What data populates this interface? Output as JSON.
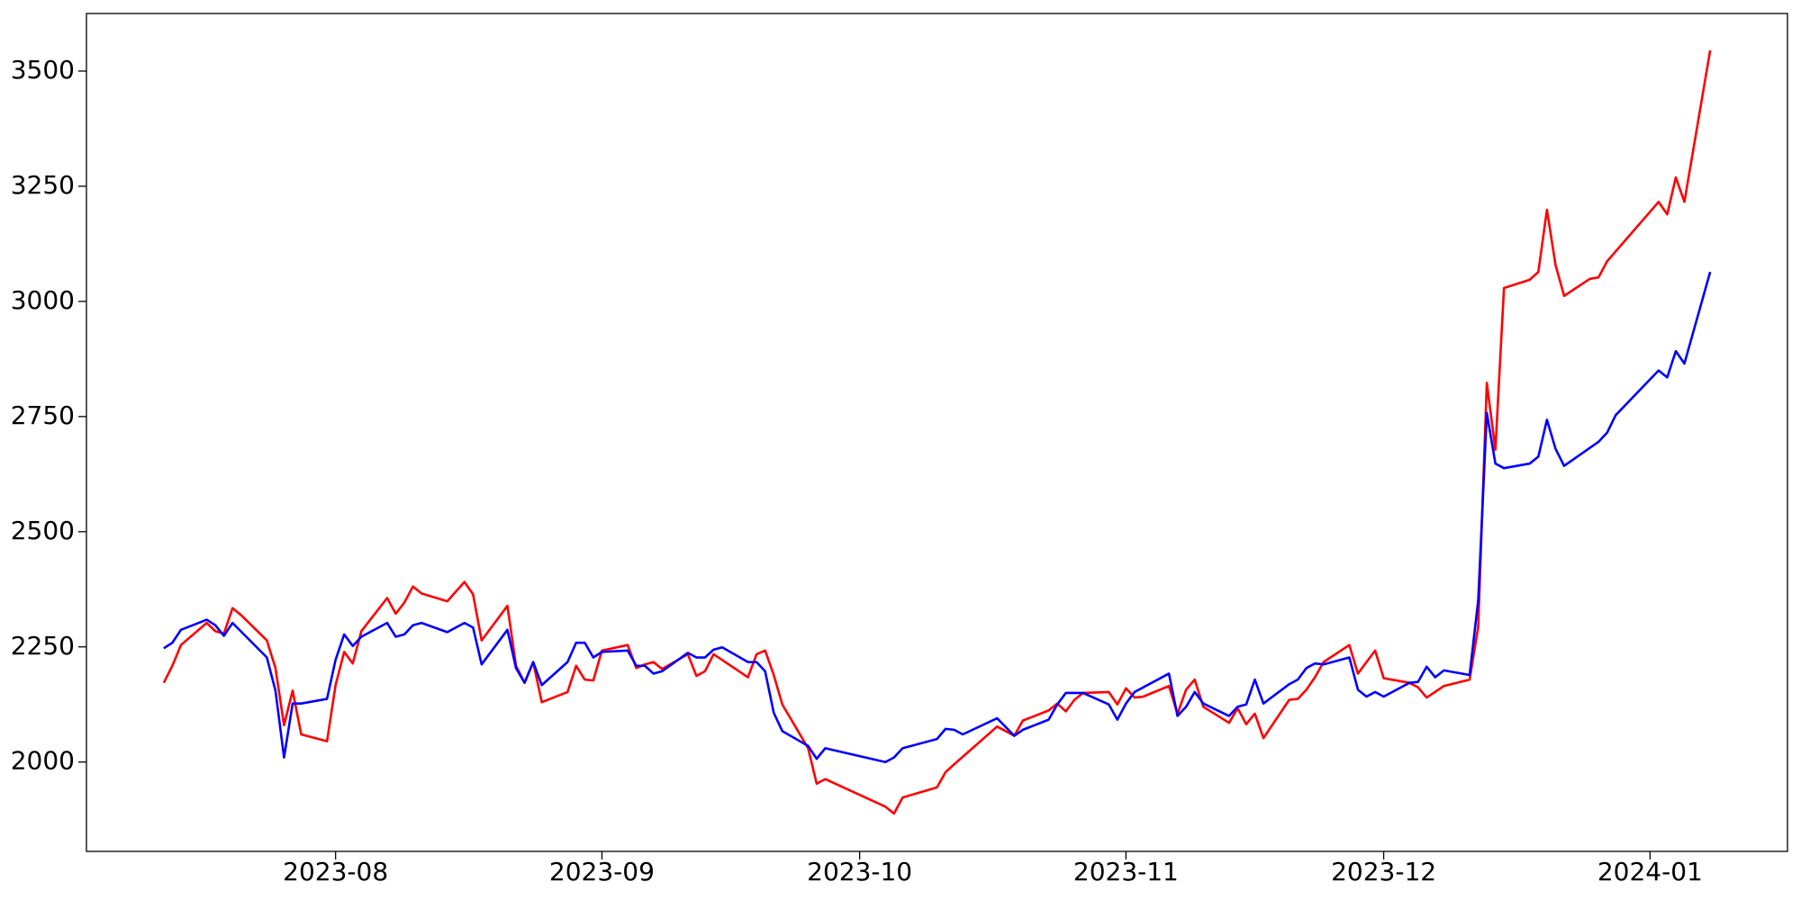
{
  "chart_data": {
    "type": "line",
    "xlim": [
      -29,
      169
    ],
    "xticks": [
      {
        "value": 0,
        "label": "2023-08"
      },
      {
        "value": 31,
        "label": "2023-09"
      },
      {
        "value": 61,
        "label": "2023-10"
      },
      {
        "value": 92,
        "label": "2023-11"
      },
      {
        "value": 122,
        "label": "2023-12"
      },
      {
        "value": 153,
        "label": "2024-01"
      }
    ],
    "ylim": [
      1806,
      3625
    ],
    "yticks": [
      2000,
      2250,
      2500,
      2750,
      3000,
      3250,
      3500
    ],
    "grid": false,
    "series": [
      {
        "color": "#ff0000",
        "x": [
          -20,
          -19,
          -18,
          -15,
          -14,
          -13,
          -12,
          -11,
          -8,
          -7,
          -6,
          -5,
          -4,
          -1,
          0,
          1,
          2,
          3,
          6,
          7,
          8,
          9,
          10,
          13,
          15,
          16,
          17,
          20,
          21,
          22,
          23,
          24,
          27,
          28,
          29,
          30,
          31,
          34,
          35,
          36,
          37,
          38,
          41,
          42,
          43,
          44,
          48,
          49,
          50,
          51,
          52,
          55,
          56,
          57,
          64,
          65,
          66,
          70,
          71,
          72,
          77,
          79,
          80,
          83,
          84,
          85,
          86,
          87,
          90,
          91,
          92,
          93,
          94,
          97,
          98,
          99,
          100,
          101,
          104,
          105,
          106,
          107,
          108,
          111,
          112,
          113,
          114,
          115,
          118,
          119,
          121,
          122,
          125,
          126,
          127,
          129,
          132,
          133,
          134,
          135,
          136,
          139,
          140,
          141,
          142,
          143,
          146,
          147,
          148,
          154,
          155,
          156,
          157,
          160
        ],
        "values": [
          2172,
          2209,
          2254,
          2302,
          2284,
          2279,
          2334,
          2319,
          2264,
          2204,
          2080,
          2155,
          2060,
          2045,
          2167,
          2239,
          2214,
          2284,
          2356,
          2322,
          2346,
          2381,
          2366,
          2349,
          2391,
          2364,
          2264,
          2339,
          2209,
          2172,
          2217,
          2130,
          2152,
          2209,
          2179,
          2177,
          2242,
          2254,
          2204,
          2212,
          2217,
          2202,
          2234,
          2187,
          2197,
          2234,
          2184,
          2234,
          2242,
          2189,
          2125,
          2030,
          1953,
          1963,
          1903,
          1888,
          1923,
          1945,
          1978,
          1995,
          2077,
          2057,
          2090,
          2112,
          2127,
          2110,
          2135,
          2150,
          2152,
          2125,
          2160,
          2140,
          2142,
          2165,
          2105,
          2157,
          2179,
          2120,
          2085,
          2117,
          2082,
          2105,
          2052,
          2135,
          2137,
          2157,
          2184,
          2217,
          2254,
          2192,
          2242,
          2182,
          2172,
          2162,
          2140,
          2165,
          2179,
          2294,
          2823,
          2678,
          3029,
          3047,
          3064,
          3199,
          3079,
          3012,
          3049,
          3052,
          3087,
          3216,
          3189,
          3269,
          3216,
          3545
        ]
      },
      {
        "color": "#0000ff",
        "x": [
          -20,
          -19,
          -18,
          -15,
          -14,
          -13,
          -12,
          -8,
          -7,
          -6,
          -5,
          -4,
          -1,
          0,
          1,
          2,
          3,
          6,
          7,
          8,
          9,
          10,
          13,
          15,
          16,
          17,
          20,
          21,
          22,
          23,
          24,
          27,
          28,
          29,
          30,
          31,
          34,
          35,
          36,
          37,
          38,
          41,
          42,
          43,
          44,
          45,
          48,
          49,
          50,
          51,
          52,
          55,
          56,
          57,
          64,
          65,
          66,
          70,
          71,
          72,
          73,
          77,
          79,
          80,
          83,
          84,
          85,
          87,
          90,
          91,
          92,
          93,
          97,
          98,
          99,
          100,
          101,
          104,
          105,
          106,
          107,
          108,
          111,
          112,
          113,
          114,
          115,
          118,
          119,
          120,
          121,
          122,
          125,
          126,
          127,
          128,
          129,
          132,
          133,
          134,
          135,
          136,
          139,
          140,
          141,
          142,
          143,
          147,
          148,
          149,
          154,
          155,
          156,
          157,
          160
        ],
        "values": [
          2247,
          2259,
          2287,
          2309,
          2297,
          2274,
          2302,
          2227,
          2155,
          2010,
          2127,
          2127,
          2137,
          2222,
          2277,
          2252,
          2272,
          2302,
          2272,
          2277,
          2297,
          2302,
          2282,
          2302,
          2292,
          2212,
          2287,
          2204,
          2172,
          2217,
          2167,
          2217,
          2259,
          2259,
          2227,
          2239,
          2242,
          2209,
          2209,
          2192,
          2197,
          2237,
          2227,
          2227,
          2244,
          2249,
          2217,
          2217,
          2197,
          2107,
          2067,
          2035,
          2007,
          2030,
          2000,
          2010,
          2030,
          2050,
          2072,
          2070,
          2060,
          2095,
          2057,
          2070,
          2092,
          2125,
          2150,
          2150,
          2125,
          2092,
          2127,
          2152,
          2192,
          2100,
          2120,
          2152,
          2127,
          2100,
          2120,
          2125,
          2179,
          2127,
          2169,
          2179,
          2204,
          2214,
          2212,
          2227,
          2157,
          2142,
          2152,
          2142,
          2172,
          2174,
          2207,
          2184,
          2199,
          2189,
          2351,
          2758,
          2648,
          2638,
          2648,
          2663,
          2743,
          2680,
          2643,
          2695,
          2715,
          2753,
          2850,
          2835,
          2892,
          2865,
          3064
        ]
      }
    ]
  }
}
